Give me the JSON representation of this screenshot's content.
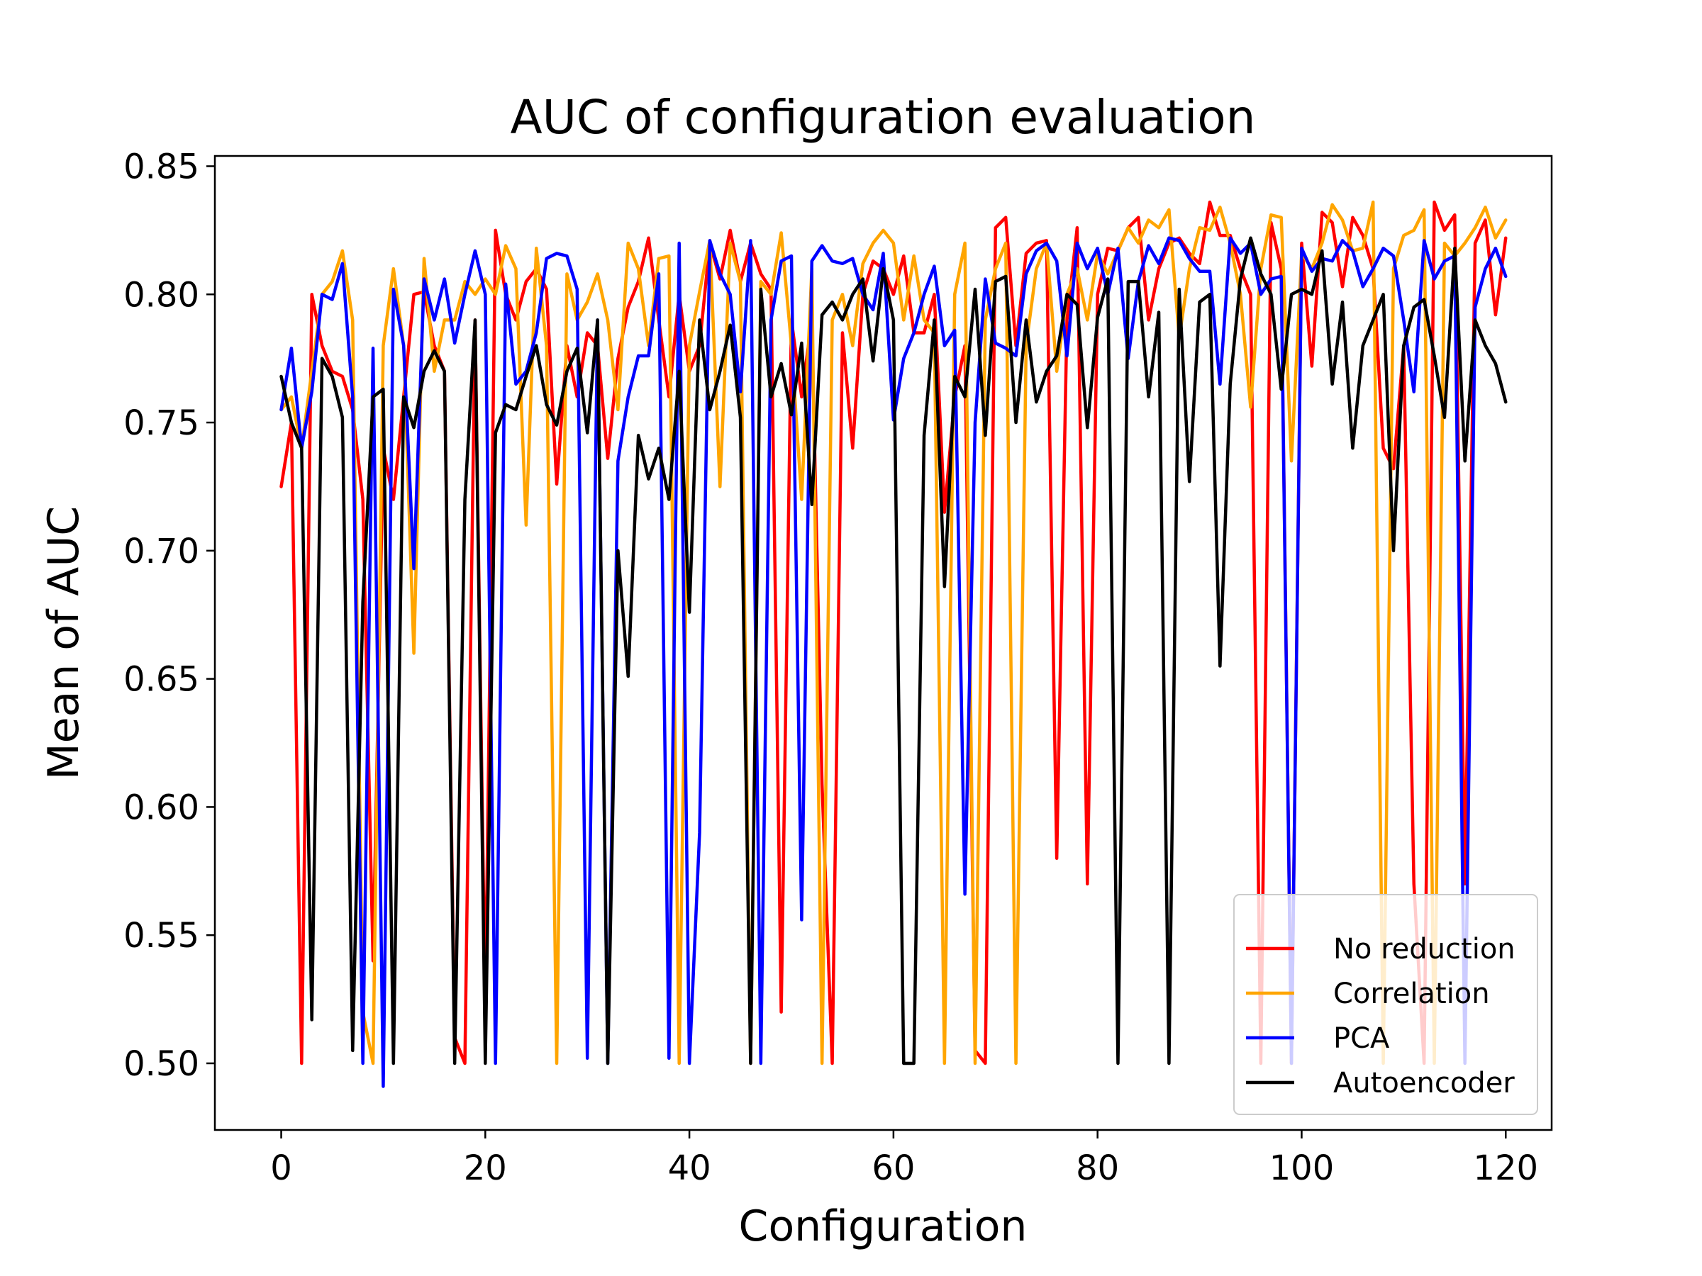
{
  "chart_data": {
    "type": "line",
    "title": "AUC of configuration evaluation",
    "xlabel": "Configuration",
    "ylabel": "Mean of AUC",
    "xlim": [
      -6.5,
      124.5
    ],
    "ylim": [
      0.474,
      0.854
    ],
    "xticks": [
      0,
      20,
      40,
      60,
      80,
      100,
      120
    ],
    "xtick_labels": [
      "0",
      "20",
      "40",
      "60",
      "80",
      "100",
      "120"
    ],
    "yticks": [
      0.5,
      0.55,
      0.6,
      0.65,
      0.7,
      0.75,
      0.8,
      0.85
    ],
    "ytick_labels": [
      "0.50",
      "0.55",
      "0.60",
      "0.65",
      "0.70",
      "0.75",
      "0.80",
      "0.85"
    ],
    "grid": false,
    "legend_position": "bottom-right",
    "series": [
      {
        "name": "No reduction",
        "color": "#ff0000",
        "values": [
          0.725,
          0.75,
          0.5,
          0.8,
          0.78,
          0.77,
          0.768,
          0.755,
          0.72,
          0.54,
          0.74,
          0.72,
          0.76,
          0.8,
          0.801,
          0.78,
          0.77,
          0.51,
          0.5,
          0.79,
          0.52,
          0.825,
          0.8,
          0.79,
          0.805,
          0.81,
          0.802,
          0.726,
          0.78,
          0.76,
          0.785,
          0.78,
          0.736,
          0.775,
          0.795,
          0.805,
          0.822,
          0.79,
          0.76,
          0.8,
          0.77,
          0.78,
          0.82,
          0.806,
          0.825,
          0.805,
          0.82,
          0.808,
          0.802,
          0.52,
          0.79,
          0.76,
          0.79,
          0.609,
          0.5,
          0.785,
          0.74,
          0.8,
          0.813,
          0.81,
          0.8,
          0.815,
          0.785,
          0.785,
          0.8,
          0.715,
          0.76,
          0.78,
          0.505,
          0.5,
          0.826,
          0.83,
          0.78,
          0.816,
          0.82,
          0.821,
          0.58,
          0.79,
          0.826,
          0.57,
          0.8,
          0.818,
          0.817,
          0.826,
          0.83,
          0.79,
          0.81,
          0.82,
          0.822,
          0.816,
          0.812,
          0.836,
          0.823,
          0.823,
          0.81,
          0.8,
          0.5,
          0.828,
          0.81,
          0.5,
          0.82,
          0.772,
          0.832,
          0.828,
          0.803,
          0.83,
          0.823,
          0.81,
          0.74,
          0.732,
          0.78,
          0.57,
          0.5,
          0.836,
          0.825,
          0.831,
          0.57,
          0.82,
          0.829,
          0.792,
          0.822
        ]
      },
      {
        "name": "Correlation",
        "color": "#ffa500",
        "values": [
          0.755,
          0.76,
          0.74,
          0.77,
          0.8,
          0.805,
          0.817,
          0.79,
          0.52,
          0.5,
          0.78,
          0.81,
          0.78,
          0.66,
          0.814,
          0.77,
          0.79,
          0.79,
          0.805,
          0.8,
          0.806,
          0.8,
          0.819,
          0.81,
          0.71,
          0.818,
          0.78,
          0.5,
          0.808,
          0.79,
          0.797,
          0.808,
          0.79,
          0.755,
          0.82,
          0.81,
          0.78,
          0.814,
          0.815,
          0.5,
          0.78,
          0.801,
          0.821,
          0.725,
          0.82,
          0.805,
          0.5,
          0.805,
          0.8,
          0.824,
          0.78,
          0.72,
          0.81,
          0.5,
          0.79,
          0.8,
          0.78,
          0.812,
          0.82,
          0.825,
          0.82,
          0.79,
          0.815,
          0.79,
          0.785,
          0.5,
          0.8,
          0.82,
          0.5,
          0.79,
          0.81,
          0.82,
          0.5,
          0.78,
          0.81,
          0.82,
          0.77,
          0.8,
          0.81,
          0.79,
          0.816,
          0.808,
          0.817,
          0.826,
          0.82,
          0.829,
          0.826,
          0.833,
          0.783,
          0.81,
          0.826,
          0.825,
          0.834,
          0.82,
          0.8,
          0.756,
          0.81,
          0.831,
          0.83,
          0.735,
          0.816,
          0.81,
          0.82,
          0.835,
          0.829,
          0.817,
          0.818,
          0.836,
          0.5,
          0.81,
          0.823,
          0.825,
          0.833,
          0.5,
          0.82,
          0.815,
          0.82,
          0.826,
          0.834,
          0.822,
          0.829
        ]
      },
      {
        "name": "PCA",
        "color": "#0000ff",
        "values": [
          0.755,
          0.779,
          0.74,
          0.762,
          0.8,
          0.798,
          0.812,
          0.76,
          0.5,
          0.779,
          0.491,
          0.802,
          0.78,
          0.693,
          0.806,
          0.79,
          0.806,
          0.781,
          0.8,
          0.817,
          0.8,
          0.5,
          0.804,
          0.765,
          0.77,
          0.785,
          0.814,
          0.816,
          0.815,
          0.802,
          0.502,
          0.79,
          0.5,
          0.735,
          0.76,
          0.776,
          0.776,
          0.808,
          0.502,
          0.82,
          0.5,
          0.59,
          0.821,
          0.808,
          0.8,
          0.762,
          0.821,
          0.5,
          0.79,
          0.813,
          0.815,
          0.556,
          0.813,
          0.819,
          0.813,
          0.812,
          0.814,
          0.8,
          0.794,
          0.816,
          0.751,
          0.775,
          0.785,
          0.8,
          0.811,
          0.78,
          0.786,
          0.566,
          0.75,
          0.806,
          0.781,
          0.779,
          0.776,
          0.808,
          0.817,
          0.82,
          0.813,
          0.776,
          0.82,
          0.81,
          0.818,
          0.8,
          0.818,
          0.775,
          0.805,
          0.819,
          0.812,
          0.822,
          0.821,
          0.814,
          0.809,
          0.809,
          0.765,
          0.822,
          0.816,
          0.82,
          0.8,
          0.806,
          0.807,
          0.5,
          0.818,
          0.809,
          0.814,
          0.813,
          0.821,
          0.817,
          0.803,
          0.81,
          0.818,
          0.815,
          0.79,
          0.762,
          0.821,
          0.806,
          0.813,
          0.815,
          0.5,
          0.795,
          0.81,
          0.818,
          0.807
        ]
      },
      {
        "name": "Autoencoder",
        "color": "#000000",
        "values": [
          0.768,
          0.75,
          0.74,
          0.517,
          0.775,
          0.768,
          0.752,
          0.505,
          0.68,
          0.76,
          0.763,
          0.5,
          0.76,
          0.748,
          0.77,
          0.778,
          0.77,
          0.5,
          0.72,
          0.79,
          0.5,
          0.746,
          0.757,
          0.755,
          0.768,
          0.78,
          0.757,
          0.749,
          0.77,
          0.779,
          0.746,
          0.79,
          0.5,
          0.7,
          0.651,
          0.745,
          0.728,
          0.74,
          0.72,
          0.77,
          0.676,
          0.79,
          0.755,
          0.77,
          0.788,
          0.752,
          0.5,
          0.802,
          0.76,
          0.773,
          0.753,
          0.781,
          0.718,
          0.792,
          0.797,
          0.79,
          0.8,
          0.806,
          0.774,
          0.81,
          0.79,
          0.5,
          0.5,
          0.745,
          0.79,
          0.686,
          0.768,
          0.76,
          0.802,
          0.745,
          0.805,
          0.807,
          0.75,
          0.79,
          0.758,
          0.77,
          0.776,
          0.8,
          0.796,
          0.748,
          0.791,
          0.806,
          0.5,
          0.805,
          0.805,
          0.76,
          0.793,
          0.5,
          0.802,
          0.727,
          0.797,
          0.8,
          0.655,
          0.765,
          0.806,
          0.822,
          0.808,
          0.8,
          0.763,
          0.8,
          0.802,
          0.8,
          0.817,
          0.765,
          0.797,
          0.74,
          0.78,
          0.79,
          0.8,
          0.7,
          0.78,
          0.795,
          0.798,
          0.776,
          0.752,
          0.818,
          0.735,
          0.79,
          0.78,
          0.773,
          0.758
        ]
      }
    ]
  }
}
